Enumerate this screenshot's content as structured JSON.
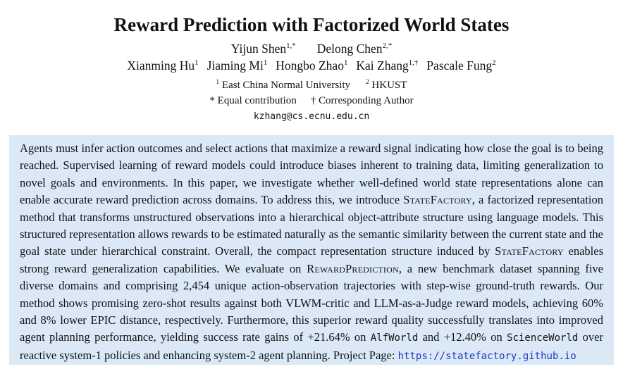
{
  "title": "Reward Prediction with Factorized World States",
  "authors": {
    "line1": [
      {
        "name": "Yijun Shen",
        "sup": "1,*"
      },
      {
        "name": "Delong Chen",
        "sup": "2,*"
      }
    ],
    "line2": [
      {
        "name": "Xianming Hu",
        "sup": "1"
      },
      {
        "name": "Jiaming Mi",
        "sup": "1"
      },
      {
        "name": "Hongbo Zhao",
        "sup": "1"
      },
      {
        "name": "Kai Zhang",
        "sup": "1,†"
      },
      {
        "name": "Pascale Fung",
        "sup": "2"
      }
    ]
  },
  "affiliations": [
    {
      "sup": "1",
      "name": "East China Normal University"
    },
    {
      "sup": "2",
      "name": "HKUST"
    }
  ],
  "notes": [
    {
      "mark": "*",
      "text": "Equal contribution"
    },
    {
      "mark": "†",
      "text": "Corresponding Author"
    }
  ],
  "email": "kzhang@cs.ecnu.edu.cn",
  "abstract": {
    "segments": [
      {
        "s": "normal",
        "t": "Agents must infer action outcomes and select actions that maximize a reward signal indicating how close the goal is to being reached. Supervised learning of reward models could introduce biases inherent to training data, limiting generalization to novel goals and environments. In this paper, we investigate whether well-defined world state representations alone can enable accurate reward prediction across domains. To address this, we introduce "
      },
      {
        "s": "smallcaps",
        "t": "StateFactory"
      },
      {
        "s": "normal",
        "t": ", a factorized representation method that transforms unstructured observations into a hierarchical object-attribute structure using language models. This structured representation allows rewards to be estimated naturally as the semantic similarity between the current state and the goal state under hierarchical constraint. Overall, the compact representation structure induced by "
      },
      {
        "s": "smallcaps",
        "t": "StateFactory"
      },
      {
        "s": "normal",
        "t": " enables strong reward generalization capabilities. We evaluate on "
      },
      {
        "s": "smallcaps",
        "t": "RewardPrediction"
      },
      {
        "s": "normal",
        "t": ", a new benchmark dataset spanning five diverse domains and comprising 2,454 unique action-observation trajectories with step-wise ground-truth rewards. Our method shows promising zero-shot results against both VLWM-critic and LLM-as-a-Judge reward models, achieving 60% and 8% lower EPIC distance, respectively. Furthermore, this superior reward quality successfully translates into improved agent planning performance, yielding success rate gains of +21.64% on "
      },
      {
        "s": "mono",
        "t": "AlfWorld"
      },
      {
        "s": "normal",
        "t": " and +12.40% on "
      },
      {
        "s": "mono",
        "t": "ScienceWorld"
      },
      {
        "s": "normal",
        "t": " over reactive system-1 policies and enhancing system-2 agent planning. Project Page: "
      },
      {
        "s": "link",
        "t": "https://statefactory.github.io"
      }
    ]
  },
  "colors": {
    "abstract_background": "#dbe9f6",
    "link": "#2233c4",
    "text": "#121212"
  }
}
